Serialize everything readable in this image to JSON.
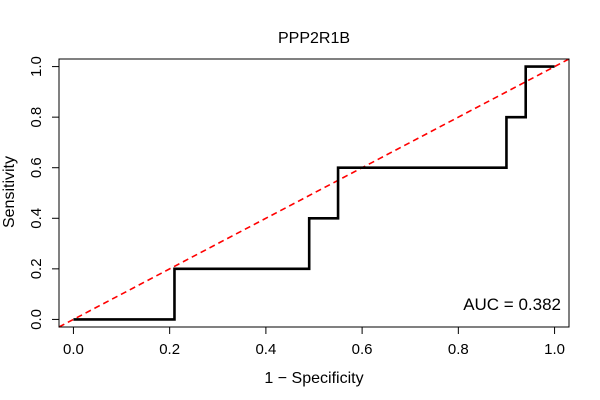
{
  "chart_data": {
    "type": "line",
    "title": "PPP2R1B",
    "xlabel": "1 − Specificity",
    "ylabel": "Sensitivity",
    "xlim": [
      -0.03,
      1.03
    ],
    "ylim": [
      -0.03,
      1.03
    ],
    "x_ticks": [
      0.0,
      0.2,
      0.4,
      0.6,
      0.8,
      1.0
    ],
    "y_ticks": [
      0.0,
      0.2,
      0.4,
      0.6,
      0.8,
      1.0
    ],
    "x_tick_labels": [
      "0.0",
      "0.2",
      "0.4",
      "0.6",
      "0.8",
      "1.0"
    ],
    "y_tick_labels": [
      "0.0",
      "0.2",
      "0.4",
      "0.6",
      "0.8",
      "1.0"
    ],
    "series": [
      {
        "name": "ROC curve",
        "color": "#000000",
        "style": "solid",
        "x": [
          0.0,
          0.21,
          0.21,
          0.49,
          0.49,
          0.55,
          0.55,
          0.9,
          0.9,
          0.94,
          0.94,
          1.0
        ],
        "y": [
          0.0,
          0.0,
          0.2,
          0.2,
          0.4,
          0.4,
          0.6,
          0.6,
          0.8,
          0.8,
          1.0,
          1.0
        ]
      },
      {
        "name": "chance line",
        "color": "#ff0000",
        "style": "dashed",
        "x": [
          -0.03,
          1.03
        ],
        "y": [
          -0.03,
          1.03
        ]
      }
    ],
    "annotations": [
      {
        "text": "AUC = 0.382"
      }
    ],
    "legend": "none",
    "grid": false
  }
}
